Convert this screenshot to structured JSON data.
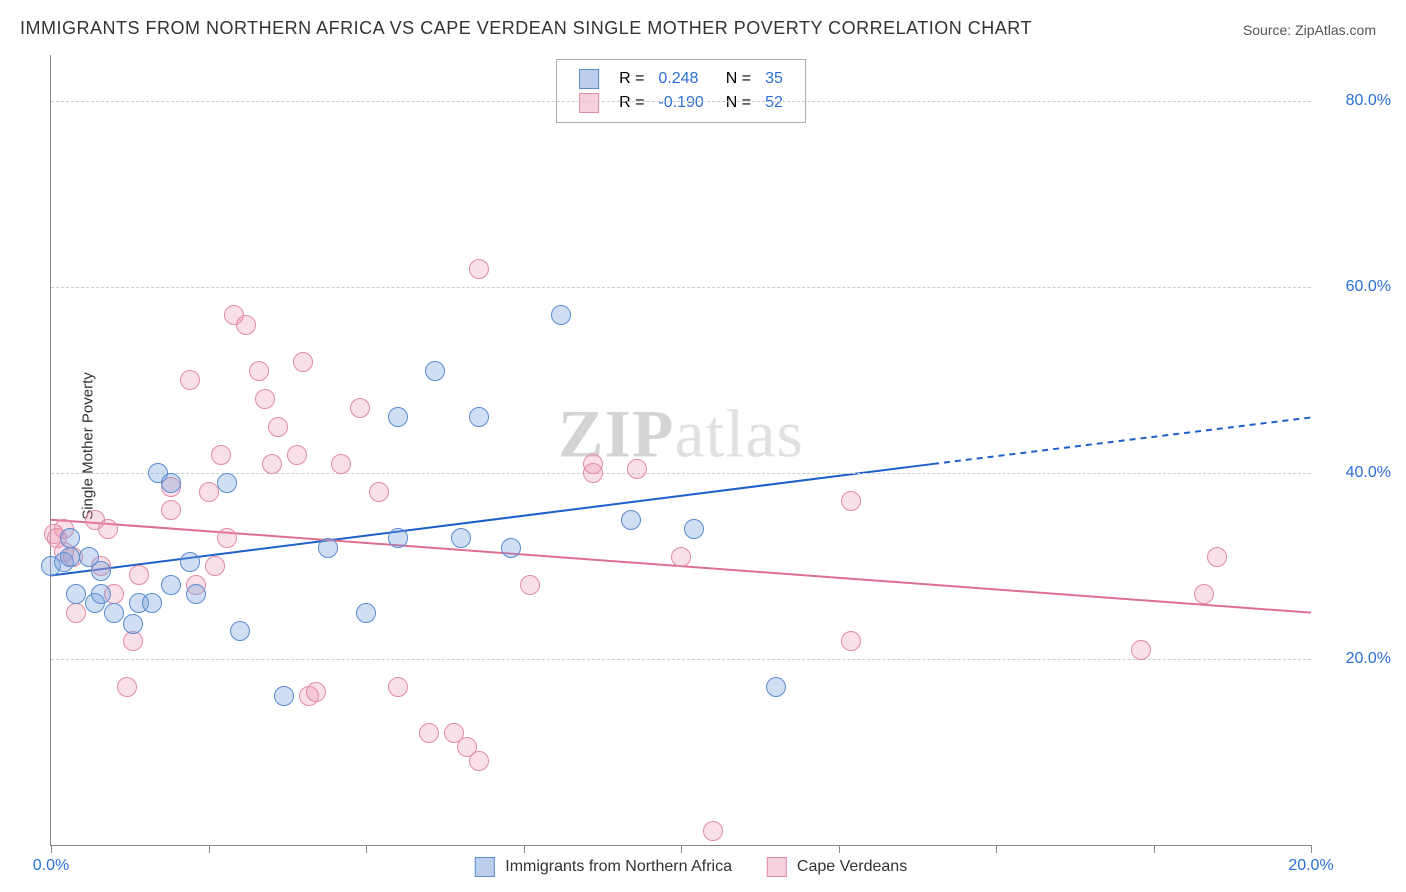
{
  "title": "IMMIGRANTS FROM NORTHERN AFRICA VS CAPE VERDEAN SINGLE MOTHER POVERTY CORRELATION CHART",
  "source": "Source: ZipAtlas.com",
  "ylabel": "Single Mother Poverty",
  "watermark_bold": "ZIP",
  "watermark_rest": "atlas",
  "chart": {
    "type": "scatter",
    "xlim": [
      0,
      20
    ],
    "ylim": [
      0,
      85
    ],
    "xticks": [
      0,
      2.5,
      5,
      7.5,
      10,
      12.5,
      15,
      17.5,
      20
    ],
    "xtick_labels": {
      "0": "0.0%",
      "20": "20.0%"
    },
    "yticks": [
      20,
      40,
      60,
      80
    ],
    "ytick_labels": [
      "20.0%",
      "40.0%",
      "60.0%",
      "80.0%"
    ],
    "grid_color": "#cccccc",
    "background_color": "#ffffff",
    "axis_color": "#888888",
    "label_color": "#2b6fd6",
    "marker_radius": 9,
    "series": [
      {
        "name": "Immigrants from Northern Africa",
        "color_fill": "rgba(120,160,220,0.35)",
        "color_stroke": "#5a8cd0",
        "line_color": "#1f5fc9",
        "R": "0.248",
        "N": "35",
        "trend": {
          "x1": 0,
          "y1": 29,
          "x2_solid": 14,
          "y2_solid": 41,
          "x2": 20,
          "y2": 46,
          "width": 2
        },
        "points": [
          [
            0.0,
            30
          ],
          [
            0.2,
            30.5
          ],
          [
            0.3,
            31
          ],
          [
            0.3,
            33
          ],
          [
            0.4,
            27
          ],
          [
            0.6,
            31
          ],
          [
            0.7,
            26
          ],
          [
            0.8,
            27
          ],
          [
            0.8,
            29.5
          ],
          [
            1.0,
            25
          ],
          [
            1.3,
            23.8
          ],
          [
            1.4,
            26
          ],
          [
            1.6,
            26
          ],
          [
            1.7,
            40
          ],
          [
            1.9,
            28
          ],
          [
            1.9,
            39
          ],
          [
            2.2,
            30.5
          ],
          [
            2.3,
            27
          ],
          [
            2.8,
            39
          ],
          [
            3.0,
            23
          ],
          [
            3.7,
            16
          ],
          [
            4.4,
            32
          ],
          [
            5.0,
            25
          ],
          [
            5.5,
            33
          ],
          [
            5.5,
            46
          ],
          [
            6.1,
            51
          ],
          [
            6.5,
            33
          ],
          [
            6.8,
            46
          ],
          [
            7.3,
            32
          ],
          [
            8.1,
            57
          ],
          [
            9.2,
            35
          ],
          [
            10.2,
            34
          ],
          [
            11.5,
            17
          ]
        ]
      },
      {
        "name": "Cape Verdeans",
        "color_fill": "rgba(235,150,175,0.3)",
        "color_stroke": "#e08ca5",
        "line_color": "#de6f94",
        "R": "-0.190",
        "N": "52",
        "trend": {
          "x1": 0,
          "y1": 35,
          "x2_solid": 20,
          "y2_solid": 25,
          "x2": 20,
          "y2": 25,
          "width": 2
        },
        "points": [
          [
            0.05,
            33.5
          ],
          [
            0.1,
            33
          ],
          [
            0.2,
            31.5
          ],
          [
            0.2,
            34
          ],
          [
            0.35,
            31
          ],
          [
            0.4,
            25
          ],
          [
            0.7,
            35
          ],
          [
            0.8,
            30
          ],
          [
            0.9,
            34
          ],
          [
            1.0,
            27
          ],
          [
            1.2,
            17
          ],
          [
            1.3,
            22
          ],
          [
            1.4,
            29
          ],
          [
            1.9,
            36
          ],
          [
            1.9,
            38.5
          ],
          [
            2.2,
            50
          ],
          [
            2.3,
            28
          ],
          [
            2.5,
            38
          ],
          [
            2.6,
            30
          ],
          [
            2.7,
            42
          ],
          [
            2.8,
            33
          ],
          [
            2.9,
            57
          ],
          [
            3.1,
            56
          ],
          [
            3.3,
            51
          ],
          [
            3.4,
            48
          ],
          [
            3.5,
            41
          ],
          [
            3.6,
            45
          ],
          [
            3.9,
            42
          ],
          [
            4.0,
            52
          ],
          [
            4.1,
            16
          ],
          [
            4.2,
            16.5
          ],
          [
            4.6,
            41
          ],
          [
            4.9,
            47
          ],
          [
            5.2,
            38
          ],
          [
            5.5,
            17
          ],
          [
            6.0,
            12
          ],
          [
            6.4,
            12
          ],
          [
            6.6,
            10.5
          ],
          [
            6.8,
            62
          ],
          [
            6.8,
            9
          ],
          [
            7.6,
            28
          ],
          [
            8.6,
            40
          ],
          [
            8.6,
            41
          ],
          [
            9.3,
            40.5
          ],
          [
            10.0,
            31
          ],
          [
            10.5,
            1.5
          ],
          [
            12.7,
            37
          ],
          [
            12.7,
            22
          ],
          [
            17.3,
            21
          ],
          [
            18.3,
            27
          ],
          [
            18.5,
            31
          ]
        ]
      }
    ]
  }
}
